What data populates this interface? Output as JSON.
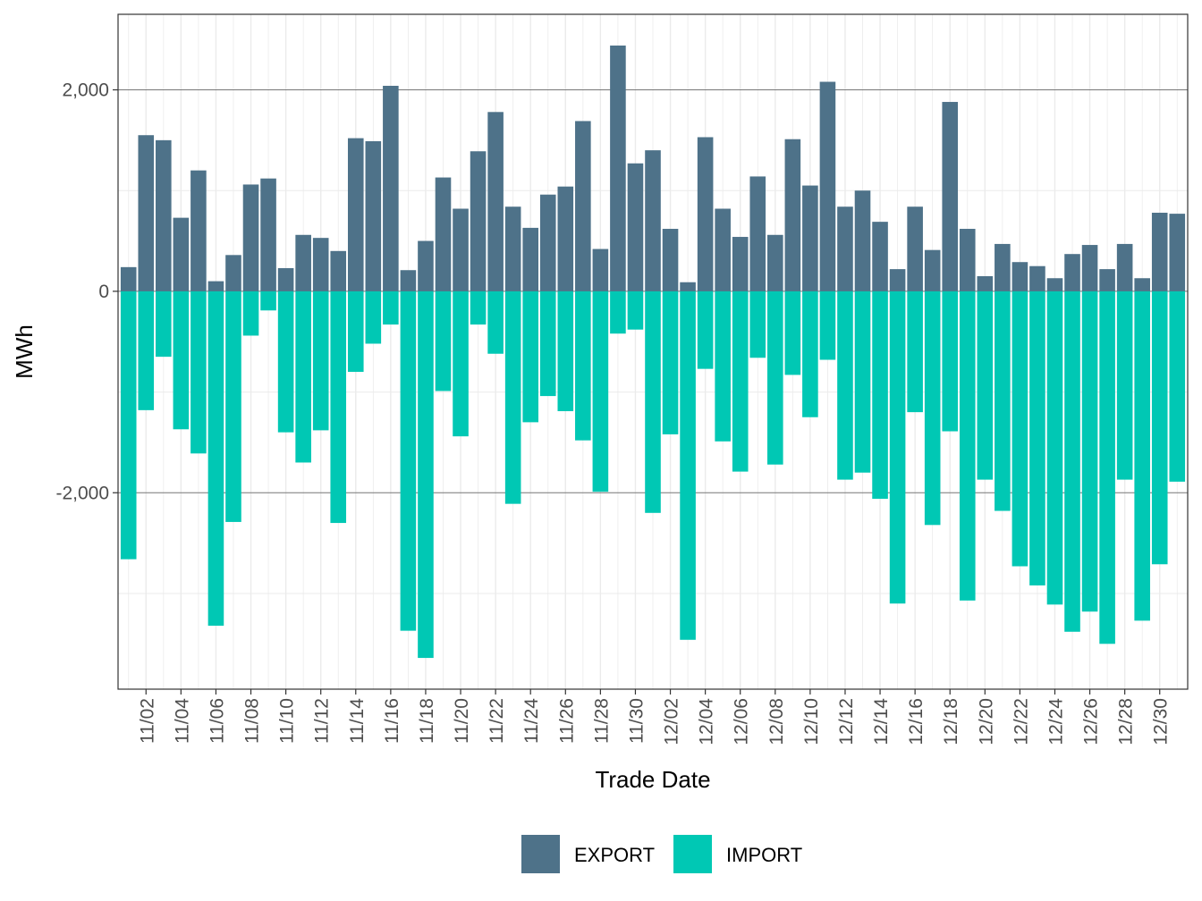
{
  "chart_data": {
    "type": "bar",
    "subtype": "diverging-stacked",
    "xlabel": "Trade Date",
    "ylabel": "MWh",
    "ylim": [
      -3950,
      2750
    ],
    "y_ticks": [
      -2000,
      0,
      2000
    ],
    "y_tick_labels": [
      "-2,000",
      "0",
      "2,000"
    ],
    "grid": true,
    "legend_position": "bottom",
    "x_tick_labels": [
      "11/02",
      "11/04",
      "11/06",
      "11/08",
      "11/10",
      "11/12",
      "11/14",
      "11/16",
      "11/18",
      "11/20",
      "11/22",
      "11/24",
      "11/26",
      "11/28",
      "11/30",
      "12/02",
      "12/04",
      "12/06",
      "12/08",
      "12/10",
      "12/12",
      "12/14",
      "12/16",
      "12/18",
      "12/20",
      "12/22",
      "12/24",
      "12/26",
      "12/28",
      "12/30"
    ],
    "categories": [
      "11/01",
      "11/02",
      "11/03",
      "11/04",
      "11/05",
      "11/06",
      "11/07",
      "11/08",
      "11/09",
      "11/10",
      "11/11",
      "11/12",
      "11/13",
      "11/14",
      "11/15",
      "11/16",
      "11/17",
      "11/18",
      "11/19",
      "11/20",
      "11/21",
      "11/22",
      "11/23",
      "11/24",
      "11/25",
      "11/26",
      "11/27",
      "11/28",
      "11/29",
      "11/30",
      "12/01",
      "12/02",
      "12/03",
      "12/04",
      "12/05",
      "12/06",
      "12/07",
      "12/08",
      "12/09",
      "12/10",
      "12/11",
      "12/12",
      "12/13",
      "12/14",
      "12/15",
      "12/16",
      "12/17",
      "12/18",
      "12/19",
      "12/20",
      "12/21",
      "12/22",
      "12/23",
      "12/24",
      "12/25",
      "12/26",
      "12/27",
      "12/28",
      "12/29",
      "12/30",
      "12/31"
    ],
    "series": [
      {
        "name": "EXPORT",
        "color": "#4e7289",
        "values": [
          240,
          1550,
          1500,
          730,
          1200,
          100,
          360,
          1060,
          1120,
          230,
          560,
          530,
          400,
          1520,
          1490,
          2040,
          210,
          500,
          1130,
          820,
          1390,
          1780,
          840,
          630,
          960,
          1040,
          1690,
          420,
          2440,
          1270,
          1400,
          620,
          90,
          1530,
          820,
          540,
          1140,
          560,
          1510,
          1050,
          2080,
          840,
          1000,
          690,
          220,
          840,
          410,
          1880,
          620,
          150,
          470,
          290,
          250,
          130,
          370,
          460,
          220,
          470,
          130,
          780,
          770
        ]
      },
      {
        "name": "IMPORT",
        "color": "#00c8b4",
        "values": [
          -2660,
          -1180,
          -650,
          -1370,
          -1610,
          -3320,
          -2290,
          -440,
          -190,
          -1400,
          -1700,
          -1380,
          -2300,
          -800,
          -520,
          -330,
          -3370,
          -3640,
          -990,
          -1440,
          -330,
          -620,
          -2110,
          -1300,
          -1040,
          -1190,
          -1480,
          -1990,
          -420,
          -380,
          -2200,
          -1420,
          -3460,
          -770,
          -1490,
          -1790,
          -660,
          -1720,
          -830,
          -1250,
          -680,
          -1870,
          -1800,
          -2060,
          -3100,
          -1200,
          -2320,
          -1390,
          -3070,
          -1870,
          -2180,
          -2730,
          -2920,
          -3110,
          -3380,
          -3180,
          -3500,
          -1870,
          -3270,
          -2710,
          -1890
        ]
      }
    ]
  }
}
